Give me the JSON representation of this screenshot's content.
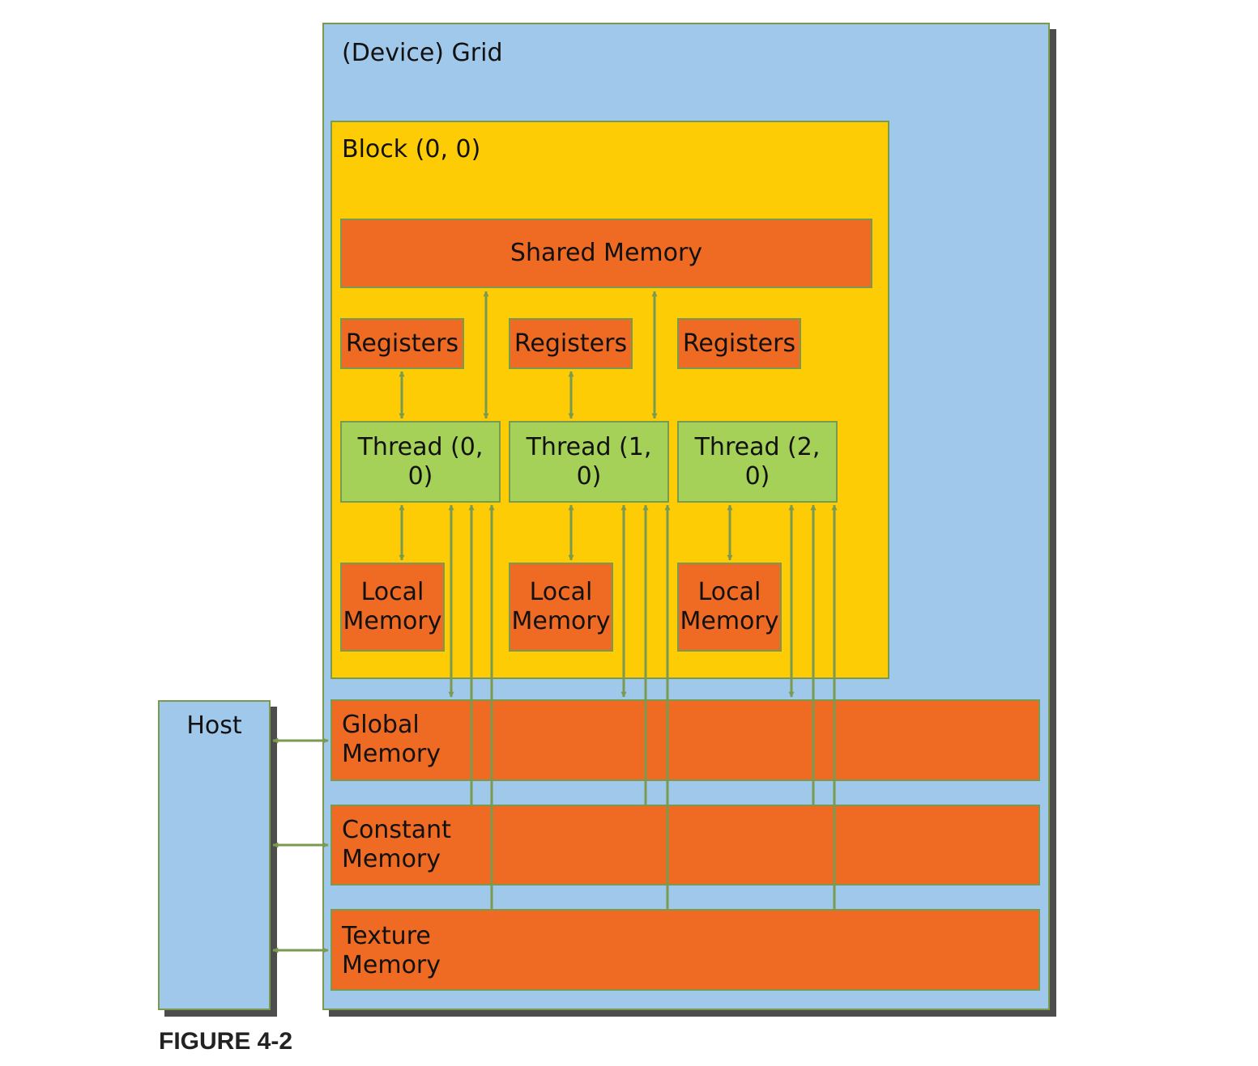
{
  "grid": {
    "label": "(Device) Grid"
  },
  "block": {
    "label": "Block (0, 0)"
  },
  "shared_memory": {
    "label": "Shared Memory"
  },
  "threads": [
    {
      "registers": "Registers",
      "thread": "Thread (0, 0)",
      "local": "Local\nMemory"
    },
    {
      "registers": "Registers",
      "thread": "Thread (1, 0)",
      "local": "Local\nMemory"
    },
    {
      "registers": "Registers",
      "thread": "Thread (2, 0)",
      "local": "Local\nMemory"
    }
  ],
  "global_memory": {
    "label": "Global\nMemory"
  },
  "constant_memory": {
    "label": "Constant\nMemory"
  },
  "texture_memory": {
    "label": "Texture\nMemory"
  },
  "host": {
    "label": "Host"
  },
  "caption": "FIGURE 4-2",
  "colors": {
    "grid": "#9fc8ea",
    "block": "#fdcc05",
    "memory": "#ef6b24",
    "thread": "#a6d158",
    "arrow": "#7a9a50"
  }
}
